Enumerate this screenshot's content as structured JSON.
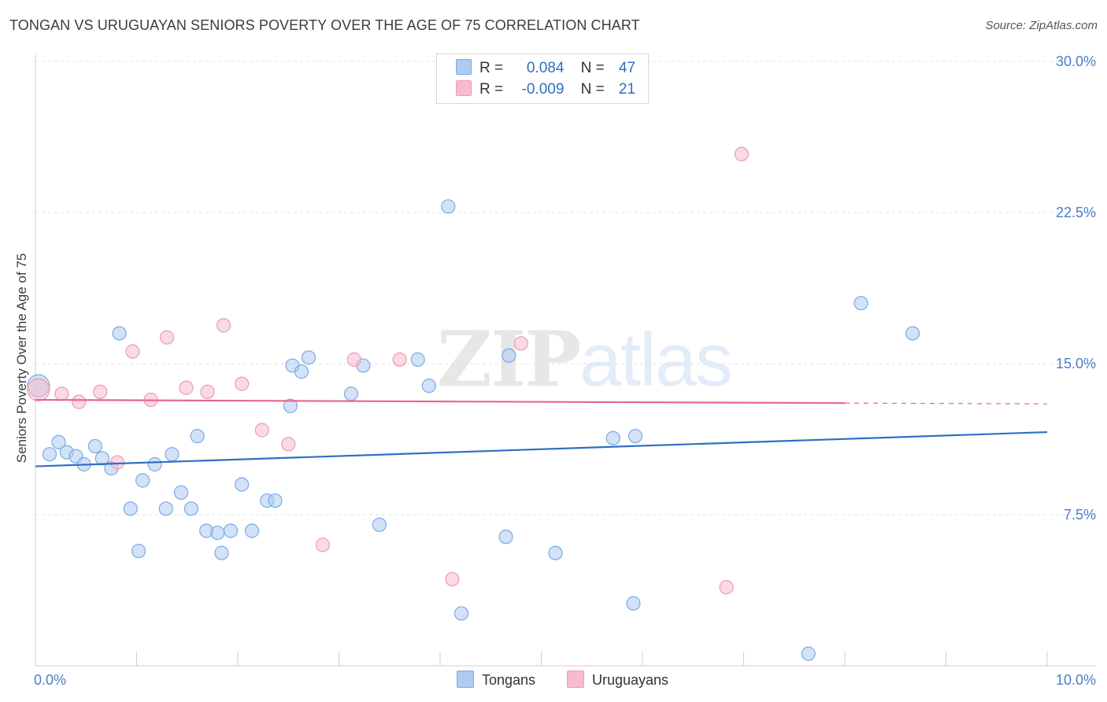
{
  "title": "TONGAN VS URUGUAYAN SENIORS POVERTY OVER THE AGE OF 75 CORRELATION CHART",
  "source": "Source: ZipAtlas.com",
  "watermark": {
    "zip": "ZIP",
    "atlas": "atlas"
  },
  "legend": {
    "rows": [
      {
        "series": "Tongans",
        "r_label": "R =",
        "r_value": "0.084",
        "n_label": "N =",
        "n_value": "47",
        "color": "#aecbf0"
      },
      {
        "series": "Uruguayans",
        "r_label": "R =",
        "r_value": "-0.009",
        "n_label": "N =",
        "n_value": "21",
        "color": "#f6bccd"
      }
    ]
  },
  "bottom_legend": [
    "Tongans",
    "Uruguayans"
  ],
  "chart_data": {
    "type": "scatter",
    "title": "TONGAN VS URUGUAYAN SENIORS POVERTY OVER THE AGE OF 75 CORRELATION CHART",
    "xlabel": "",
    "ylabel": "Seniors Poverty Over the Age of 75",
    "xlim": [
      0,
      10
    ],
    "ylim": [
      0,
      30
    ],
    "x_tick_labels": [
      {
        "value": 0,
        "label": "0.0%"
      },
      {
        "value": 10,
        "label": "10.0%"
      }
    ],
    "y_tick_labels": [
      {
        "value": 7.5,
        "label": "7.5%"
      },
      {
        "value": 15,
        "label": "15.0%"
      },
      {
        "value": 22.5,
        "label": "22.5%"
      },
      {
        "value": 30,
        "label": "30.0%"
      }
    ],
    "grid": true,
    "series": [
      {
        "name": "Tongans",
        "color": "#7aaae6",
        "fill": "#aecbf0",
        "line_color": "#2f6fc4",
        "trend": {
          "x": [
            0,
            10
          ],
          "y": [
            9.9,
            11.6
          ],
          "dashed_from": null
        },
        "points": [
          {
            "x": 0.03,
            "y": 13.9
          },
          {
            "x": 0.14,
            "y": 10.5
          },
          {
            "x": 0.23,
            "y": 11.1
          },
          {
            "x": 0.31,
            "y": 10.6
          },
          {
            "x": 0.4,
            "y": 10.4
          },
          {
            "x": 0.48,
            "y": 10.0
          },
          {
            "x": 0.59,
            "y": 10.9
          },
          {
            "x": 0.66,
            "y": 10.3
          },
          {
            "x": 0.75,
            "y": 9.8
          },
          {
            "x": 0.83,
            "y": 16.5
          },
          {
            "x": 0.94,
            "y": 7.8
          },
          {
            "x": 1.02,
            "y": 5.7
          },
          {
            "x": 1.06,
            "y": 9.2
          },
          {
            "x": 1.18,
            "y": 10.0
          },
          {
            "x": 1.29,
            "y": 7.8
          },
          {
            "x": 1.35,
            "y": 10.5
          },
          {
            "x": 1.44,
            "y": 8.6
          },
          {
            "x": 1.54,
            "y": 7.8
          },
          {
            "x": 1.6,
            "y": 11.4
          },
          {
            "x": 1.69,
            "y": 6.7
          },
          {
            "x": 1.8,
            "y": 6.6
          },
          {
            "x": 1.84,
            "y": 5.6
          },
          {
            "x": 1.93,
            "y": 6.7
          },
          {
            "x": 2.04,
            "y": 9.0
          },
          {
            "x": 2.14,
            "y": 6.7
          },
          {
            "x": 2.29,
            "y": 8.2
          },
          {
            "x": 2.37,
            "y": 8.2
          },
          {
            "x": 2.52,
            "y": 12.9
          },
          {
            "x": 2.54,
            "y": 14.9
          },
          {
            "x": 2.63,
            "y": 14.6
          },
          {
            "x": 2.7,
            "y": 15.3
          },
          {
            "x": 3.12,
            "y": 13.5
          },
          {
            "x": 3.24,
            "y": 14.9
          },
          {
            "x": 3.4,
            "y": 7.0
          },
          {
            "x": 3.78,
            "y": 15.2
          },
          {
            "x": 3.89,
            "y": 13.9
          },
          {
            "x": 4.08,
            "y": 22.8
          },
          {
            "x": 4.21,
            "y": 2.6
          },
          {
            "x": 4.65,
            "y": 6.4
          },
          {
            "x": 4.68,
            "y": 15.4
          },
          {
            "x": 5.14,
            "y": 5.6
          },
          {
            "x": 5.71,
            "y": 11.3
          },
          {
            "x": 5.91,
            "y": 3.1
          },
          {
            "x": 5.93,
            "y": 11.4
          },
          {
            "x": 7.64,
            "y": 0.6
          },
          {
            "x": 8.16,
            "y": 18.0
          },
          {
            "x": 8.67,
            "y": 16.5
          }
        ]
      },
      {
        "name": "Uruguayans",
        "color": "#ee9ab3",
        "fill": "#f6bccd",
        "line_color": "#e8648e",
        "trend": {
          "x": [
            0,
            10
          ],
          "y": [
            13.2,
            13.0
          ],
          "dashed_from": 8.0
        },
        "points": [
          {
            "x": 0.03,
            "y": 13.7
          },
          {
            "x": 0.26,
            "y": 13.5
          },
          {
            "x": 0.43,
            "y": 13.1
          },
          {
            "x": 0.64,
            "y": 13.6
          },
          {
            "x": 0.81,
            "y": 10.1
          },
          {
            "x": 0.96,
            "y": 15.6
          },
          {
            "x": 1.14,
            "y": 13.2
          },
          {
            "x": 1.3,
            "y": 16.3
          },
          {
            "x": 1.49,
            "y": 13.8
          },
          {
            "x": 1.7,
            "y": 13.6
          },
          {
            "x": 1.86,
            "y": 16.9
          },
          {
            "x": 2.04,
            "y": 14.0
          },
          {
            "x": 2.24,
            "y": 11.7
          },
          {
            "x": 2.5,
            "y": 11.0
          },
          {
            "x": 2.84,
            "y": 6.0
          },
          {
            "x": 3.15,
            "y": 15.2
          },
          {
            "x": 3.6,
            "y": 15.2
          },
          {
            "x": 4.12,
            "y": 4.3
          },
          {
            "x": 4.8,
            "y": 16.0
          },
          {
            "x": 6.83,
            "y": 3.9
          },
          {
            "x": 6.98,
            "y": 25.4
          }
        ]
      }
    ]
  }
}
